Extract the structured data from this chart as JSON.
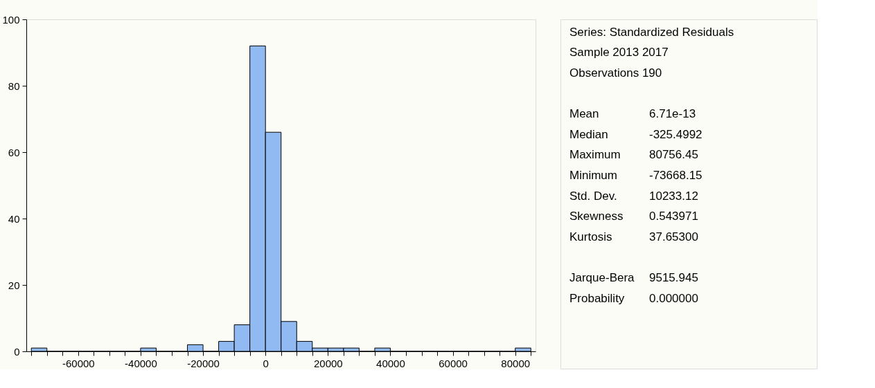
{
  "chart_data": {
    "type": "histogram",
    "color": "#91baf2",
    "bins": [
      -75000,
      -70000,
      -65000,
      -60000,
      -55000,
      -50000,
      -45000,
      -40000,
      -35000,
      -30000,
      -25000,
      -20000,
      -15000,
      -10000,
      -5000,
      0,
      5000,
      10000,
      15000,
      20000,
      25000,
      30000,
      35000,
      40000,
      45000,
      50000,
      55000,
      60000,
      65000,
      70000,
      75000,
      80000,
      85000
    ],
    "values": [
      1,
      0,
      0,
      0,
      0,
      0,
      0,
      1,
      0,
      0,
      2,
      0,
      3,
      8,
      92,
      66,
      9,
      3,
      1,
      1,
      1,
      0,
      1,
      0,
      0,
      0,
      0,
      0,
      0,
      0,
      0,
      1
    ],
    "xlim": [
      -76600,
      86500
    ],
    "xticks": [
      {
        "value": -75000,
        "label": null
      },
      {
        "value": -70000,
        "label": null
      },
      {
        "value": -65000,
        "label": null
      },
      -60000,
      {
        "value": -55000,
        "label": null
      },
      {
        "value": -50000,
        "label": null
      },
      {
        "value": -45000,
        "label": null
      },
      -40000,
      {
        "value": -35000,
        "label": null
      },
      {
        "value": -30000,
        "label": null
      },
      {
        "value": -25000,
        "label": null
      },
      -20000,
      {
        "value": -15000,
        "label": null
      },
      {
        "value": -10000,
        "label": null
      },
      {
        "value": -5000,
        "label": null
      },
      0,
      {
        "value": 5000,
        "label": null
      },
      {
        "value": 10000,
        "label": null
      },
      {
        "value": 15000,
        "label": null
      },
      20000,
      {
        "value": 25000,
        "label": null
      },
      {
        "value": 30000,
        "label": null
      },
      {
        "value": 35000,
        "label": null
      },
      40000,
      {
        "value": 45000,
        "label": null
      },
      {
        "value": 50000,
        "label": null
      },
      {
        "value": 55000,
        "label": null
      },
      60000,
      {
        "value": 65000,
        "label": null
      },
      {
        "value": 70000,
        "label": null
      },
      {
        "value": 75000,
        "label": null
      },
      80000,
      {
        "value": 85000,
        "label": null
      }
    ],
    "ylim": [
      0,
      100
    ],
    "yticks": [
      0,
      20,
      40,
      60,
      80,
      100
    ],
    "grid": false,
    "annotations": [
      "Series: Standardized Residuals",
      "Sample 2013 2017",
      "Observations 190",
      "Mean",
      "6.71e-13",
      "Median",
      "-325.4992",
      "Maximum",
      "80756.45",
      "Minimum",
      "-73668.15",
      "Std. Dev.",
      "10233.12",
      "Skewness",
      "0.543971",
      "Kurtosis",
      "37.65300",
      "Jarque-Bera",
      "9515.945",
      "Probability",
      "0.000000"
    ]
  }
}
